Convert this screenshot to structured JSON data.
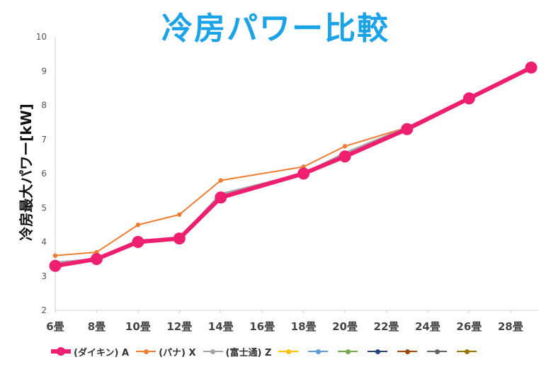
{
  "chart_data": {
    "type": "line",
    "title": "冷房パワー比較",
    "ylabel": "冷房最大パワー[kW]",
    "xlabel": "",
    "ylim": [
      2,
      10
    ],
    "yticks": [
      2,
      3,
      4,
      5,
      6,
      7,
      8,
      9,
      10
    ],
    "xticks": [
      "6畳",
      "8畳",
      "10畳",
      "12畳",
      "14畳",
      "16畳",
      "18畳",
      "20畳",
      "22畳",
      "24畳",
      "26畳",
      "28畳"
    ],
    "legend_position": "bottom",
    "series": [
      {
        "name": "(ダイキン) A",
        "color": "#ee1f6e",
        "points": [
          [
            "6畳",
            3.3
          ],
          [
            "8畳",
            3.5
          ],
          [
            "10畳",
            4.0
          ],
          [
            "12畳",
            4.1
          ],
          [
            "14畳",
            5.3
          ],
          [
            "18畳",
            6.0
          ],
          [
            "20畳",
            6.5
          ],
          [
            "23畳",
            7.3
          ],
          [
            "26畳",
            8.2
          ],
          [
            "29畳",
            9.1
          ]
        ]
      },
      {
        "name": "(パナ) X",
        "color": "#ed7d31",
        "points": [
          [
            "6畳",
            3.6
          ],
          [
            "8畳",
            3.7
          ],
          [
            "10畳",
            4.5
          ],
          [
            "12畳",
            4.8
          ],
          [
            "14畳",
            5.8
          ],
          [
            "18畳",
            6.2
          ],
          [
            "20畳",
            6.8
          ],
          [
            "23畳",
            7.35
          ],
          [
            "26畳",
            8.2
          ],
          [
            "29畳",
            9.1
          ]
        ]
      },
      {
        "name": "(富士通) Z",
        "color": "#a5a5a5",
        "points": [
          [
            "6畳",
            3.4
          ],
          [
            "8畳",
            3.5
          ],
          [
            "10畳",
            4.05
          ],
          [
            "12畳",
            4.1
          ],
          [
            "14畳",
            5.4
          ],
          [
            "18畳",
            6.0
          ],
          [
            "20畳",
            6.6
          ],
          [
            "23畳",
            7.35
          ],
          [
            "26畳",
            8.2
          ],
          [
            "29畳",
            9.1
          ]
        ]
      },
      {
        "name": "",
        "color": "#ffc000",
        "points": []
      },
      {
        "name": "",
        "color": "#5b9bd5",
        "points": []
      },
      {
        "name": "",
        "color": "#70ad47",
        "points": []
      },
      {
        "name": "",
        "color": "#264478",
        "points": []
      },
      {
        "name": "",
        "color": "#9e480e",
        "points": []
      },
      {
        "name": "",
        "color": "#636363",
        "points": []
      },
      {
        "name": "",
        "color": "#997300",
        "points": []
      }
    ]
  }
}
